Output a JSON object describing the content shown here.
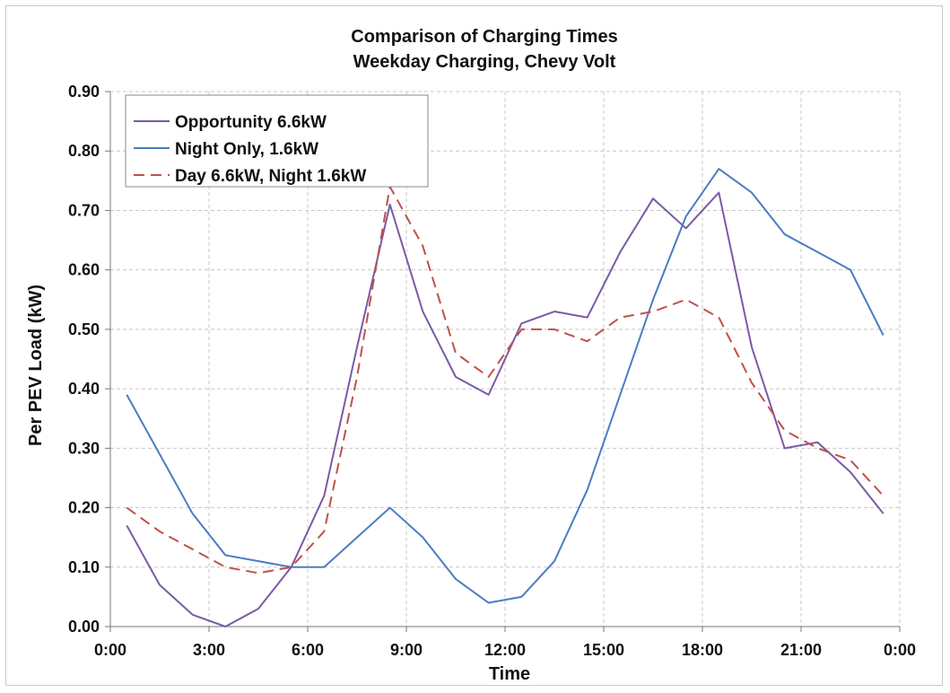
{
  "chart_data": {
    "type": "line",
    "title": "Comparison of Charging Times",
    "subtitle": "Weekday Charging, Chevy Volt",
    "xlabel": "Time",
    "ylabel": "Per PEV Load (kW)",
    "xlim": [
      "0:00",
      "0:00"
    ],
    "ylim": [
      0,
      0.9
    ],
    "x_ticks": [
      "0:00",
      "3:00",
      "6:00",
      "9:00",
      "12:00",
      "15:00",
      "18:00",
      "21:00",
      "0:00"
    ],
    "y_ticks": [
      "0.00",
      "0.10",
      "0.20",
      "0.30",
      "0.40",
      "0.50",
      "0.60",
      "0.70",
      "0.80",
      "0.90"
    ],
    "x": [
      "0:30",
      "1:30",
      "2:30",
      "3:30",
      "4:30",
      "5:30",
      "6:30",
      "7:30",
      "8:30",
      "9:30",
      "10:30",
      "11:30",
      "12:30",
      "13:30",
      "14:30",
      "15:30",
      "16:30",
      "17:30",
      "18:30",
      "19:30",
      "20:30",
      "21:30",
      "22:30",
      "23:30"
    ],
    "grid": true,
    "legend_position": "top-left",
    "series": [
      {
        "name": "Opportunity 6.6kW",
        "color": "#7b5aa6",
        "style": "solid",
        "values": [
          0.17,
          0.07,
          0.02,
          0.0,
          0.03,
          0.1,
          0.22,
          0.47,
          0.71,
          0.53,
          0.42,
          0.39,
          0.51,
          0.53,
          0.52,
          0.63,
          0.72,
          0.67,
          0.73,
          0.47,
          0.3,
          0.31,
          0.26,
          0.19
        ]
      },
      {
        "name": "Night Only, 1.6kW",
        "color": "#4a7dc0",
        "style": "solid",
        "values": [
          0.39,
          0.29,
          0.19,
          0.12,
          0.11,
          0.1,
          0.1,
          0.15,
          0.2,
          0.15,
          0.08,
          0.04,
          0.05,
          0.11,
          0.23,
          0.39,
          0.55,
          0.69,
          0.77,
          0.73,
          0.66,
          0.63,
          0.6,
          0.49
        ]
      },
      {
        "name": "Day 6.6kW, Night 1.6kW",
        "color": "#c0504d",
        "style": "dashed",
        "values": [
          0.2,
          0.16,
          0.13,
          0.1,
          0.09,
          0.1,
          0.16,
          0.42,
          0.74,
          0.64,
          0.46,
          0.42,
          0.5,
          0.5,
          0.48,
          0.52,
          0.53,
          0.55,
          0.52,
          0.41,
          0.33,
          0.3,
          0.28,
          0.22
        ]
      }
    ]
  }
}
